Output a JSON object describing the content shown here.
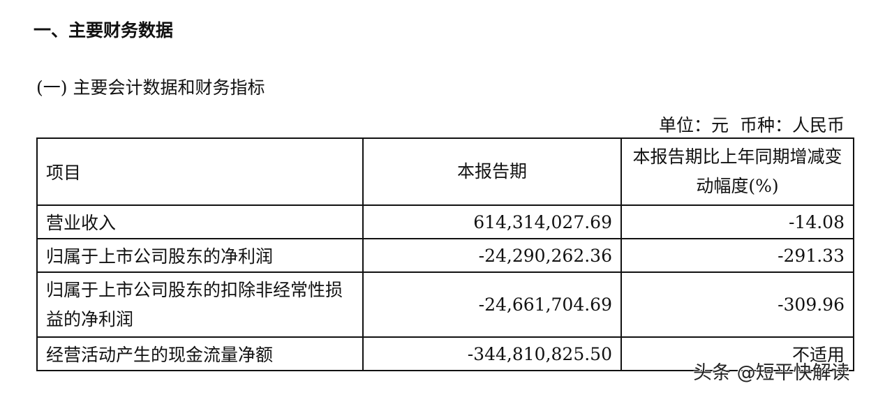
{
  "heading": "一、主要财务数据",
  "subheading": "(一) 主要会计数据和财务指标",
  "unit_note": "单位：元  币种：人民币",
  "table": {
    "headers": [
      "项目",
      "本报告期",
      "本报告期比上年同期增减变动幅度(%)"
    ],
    "rows": [
      {
        "item": "营业收入",
        "value": "614,314,027.69",
        "change": "-14.08"
      },
      {
        "item": "归属于上市公司股东的净利润",
        "value": "-24,290,262.36",
        "change": "-291.33"
      },
      {
        "item": "归属于上市公司股东的扣除非经常性损益的净利润",
        "value": "-24,661,704.69",
        "change": "-309.96"
      },
      {
        "item": "经营活动产生的现金流量净额",
        "value": "-344,810,825.50",
        "change": "不适用"
      }
    ]
  },
  "watermark": "头条 @短平快解读"
}
